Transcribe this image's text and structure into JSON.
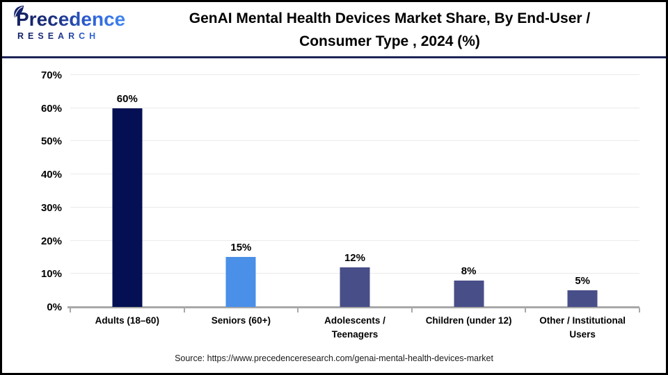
{
  "header": {
    "logo": {
      "brand": "Precedence",
      "subtext": "RESEARCH"
    },
    "title_line1": "GenAI Mental Health Devices Market Share, By End-User /",
    "title_line2": "Consumer Type , 2024 (%)"
  },
  "chart_data": {
    "type": "bar",
    "title": "GenAI Mental Health Devices Market Share, By End-User / Consumer Type , 2024 (%)",
    "categories": [
      "Adults (18–60)",
      "Seniors (60+)",
      "Adolescents / Teenagers",
      "Children (under 12)",
      "Other / Institutional Users"
    ],
    "values": [
      60,
      15,
      12,
      8,
      5
    ],
    "value_labels": [
      "60%",
      "15%",
      "12%",
      "8%",
      "5%"
    ],
    "bar_colors": [
      "#041053",
      "#4a8fe8",
      "#484e88",
      "#484e88",
      "#484e88"
    ],
    "xlabel": "",
    "ylabel": "",
    "ylim": [
      0,
      70
    ],
    "ytick_step": 10,
    "ytick_labels": [
      "0%",
      "10%",
      "20%",
      "30%",
      "40%",
      "50%",
      "60%",
      "70%"
    ],
    "grid": true,
    "legend": false
  },
  "footer": {
    "source": "Source: https://www.precedenceresearch.com/genai-mental-health-devices-market"
  },
  "colors": {
    "header_rule": "#1b2355",
    "gridline": "#eaeaea",
    "axis": "#a8a8a8",
    "logo_navy": "#131f5e",
    "logo_blue": "#3f86ee",
    "frame_border": "#000000"
  }
}
